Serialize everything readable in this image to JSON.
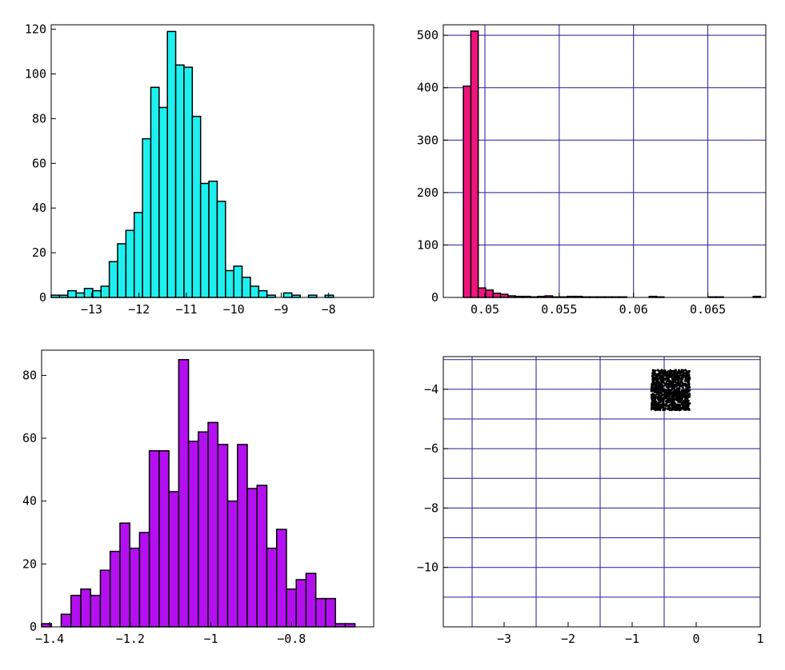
{
  "colors": {
    "hist1_fill": "#1ef0f0",
    "hist2_fill": "#f0147d",
    "hist3_fill": "#b40ff0",
    "grid": "#1e1e96",
    "scatter_point": "#000000",
    "bar_edge": "#000000"
  },
  "chart_data": [
    {
      "type": "bar",
      "title": "",
      "xlabel": "",
      "ylabel": "",
      "xlim": [
        -13.85,
        -7.05
      ],
      "ylim": [
        0,
        122
      ],
      "bin_start": -13.85,
      "bin_width": 0.175,
      "values": [
        1,
        1,
        3,
        2,
        4,
        3,
        5,
        16,
        24,
        30,
        38,
        71,
        94,
        85,
        119,
        104,
        103,
        81,
        51,
        52,
        43,
        12,
        14,
        9,
        5,
        3,
        1,
        0,
        2,
        1,
        0,
        1,
        0,
        1
      ],
      "xticks": [
        -13,
        -12,
        -11,
        -10,
        -9,
        -8
      ],
      "xtick_labels": [
        "−13",
        "−12",
        "−11",
        "−10",
        "−9",
        "−8"
      ],
      "yticks": [
        0,
        20,
        40,
        60,
        80,
        100,
        120
      ],
      "ytick_labels": [
        "0",
        "20",
        "40",
        "60",
        "80",
        "100",
        "120"
      ],
      "grid": false
    },
    {
      "type": "bar",
      "title": "",
      "xlabel": "",
      "ylabel": "",
      "xlim": [
        0.0472,
        0.0689
      ],
      "ylim": [
        0,
        520
      ],
      "bin_start": 0.04855,
      "bin_width": 0.0005,
      "values": [
        403,
        508,
        18,
        14,
        8,
        6,
        3,
        2,
        2,
        1,
        2,
        3,
        1,
        1,
        2,
        2,
        1,
        1,
        1,
        1,
        1,
        1,
        0,
        0,
        0,
        2,
        1,
        0,
        0,
        0,
        0,
        0,
        0,
        1,
        1,
        0,
        0,
        0,
        0,
        2,
        0
      ],
      "xticks": [
        0.05,
        0.055,
        0.06,
        0.065
      ],
      "xtick_labels": [
        "0.05",
        "0.055",
        "0.06",
        "0.065"
      ],
      "yticks": [
        0,
        100,
        200,
        300,
        400,
        500
      ],
      "ytick_labels": [
        "0",
        "100",
        "200",
        "300",
        "400",
        "500"
      ],
      "grid": true
    },
    {
      "type": "bar",
      "title": "",
      "xlabel": "",
      "ylabel": "",
      "xlim": [
        -1.42,
        -0.596
      ],
      "ylim": [
        0,
        88
      ],
      "bin_start": -1.42,
      "bin_width": 0.0243,
      "values": [
        1,
        0,
        4,
        10,
        12,
        10,
        18,
        24,
        33,
        25,
        30,
        56,
        56,
        43,
        85,
        59,
        62,
        65,
        58,
        40,
        58,
        44,
        45,
        25,
        31,
        12,
        15,
        17,
        9,
        9,
        1,
        1
      ],
      "xticks": [
        -1.4,
        -1.2,
        -1,
        -0.8
      ],
      "xtick_labels": [
        "−1.4",
        "−1.2",
        "−1",
        "−0.8"
      ],
      "yticks": [
        0,
        20,
        40,
        60,
        80
      ],
      "ytick_labels": [
        "0",
        "20",
        "40",
        "60",
        "80"
      ],
      "grid": false
    },
    {
      "type": "scatter",
      "title": "",
      "xlabel": "",
      "ylabel": "",
      "xlim": [
        -3.95,
        1.0
      ],
      "ylim": [
        -12.0,
        -2.9
      ],
      "cluster": {
        "x_range": [
          -0.7,
          -0.1
        ],
        "y_range": [
          -4.7,
          -3.35
        ]
      },
      "xticks": [
        -3,
        -2,
        -1,
        0,
        1
      ],
      "xtick_labels": [
        "−3",
        "−2",
        "−1",
        "0",
        "1"
      ],
      "yticks": [
        -4,
        -6,
        -8,
        -10
      ],
      "ytick_labels": [
        "−4",
        "−6",
        "−8",
        "−10"
      ],
      "grid": true,
      "grid_x": [
        -3.5,
        -2.5,
        -1.5,
        -0.5
      ],
      "grid_y": [
        -3,
        -4,
        -5,
        -6,
        -7,
        -8,
        -9,
        -10,
        -11
      ]
    }
  ]
}
